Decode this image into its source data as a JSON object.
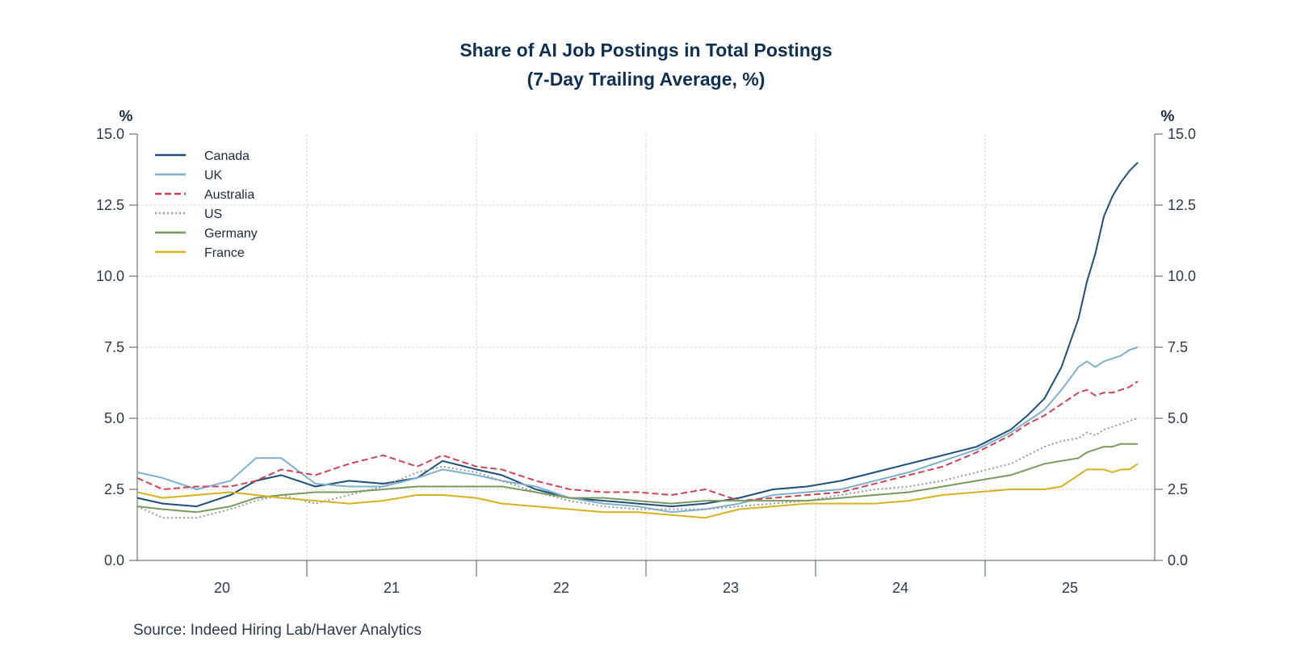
{
  "chart_data": {
    "type": "line",
    "title": "Share of AI Job Postings in Total Postings",
    "subtitle": "(7-Day Trailing Average, %)",
    "y_unit_left": "%",
    "y_unit_right": "%",
    "ylim": [
      0,
      15
    ],
    "yticks": [
      "0.0",
      "2.5",
      "5.0",
      "7.5",
      "10.0",
      "12.5",
      "15.0"
    ],
    "xlim": [
      2019.85,
      2025.85
    ],
    "x_categories": [
      "20",
      "21",
      "22",
      "23",
      "24",
      "25"
    ],
    "grid": true,
    "legend_position": "top-left",
    "series": [
      {
        "name": "Canada",
        "color": "#1f4e79",
        "dash": "solid",
        "x": [
          2019.85,
          2020.0,
          2020.2,
          2020.4,
          2020.55,
          2020.7,
          2020.9,
          2021.1,
          2021.3,
          2021.5,
          2021.65,
          2021.85,
          2022.0,
          2022.2,
          2022.4,
          2022.6,
          2022.8,
          2023.0,
          2023.2,
          2023.4,
          2023.6,
          2023.8,
          2024.0,
          2024.2,
          2024.4,
          2024.6,
          2024.8,
          2025.0,
          2025.1,
          2025.2,
          2025.3,
          2025.4,
          2025.45,
          2025.5,
          2025.55,
          2025.6,
          2025.65,
          2025.7,
          2025.75
        ],
        "y": [
          2.2,
          2.0,
          1.9,
          2.3,
          2.8,
          3.0,
          2.6,
          2.8,
          2.7,
          2.9,
          3.5,
          3.2,
          3.0,
          2.5,
          2.2,
          2.1,
          2.0,
          1.9,
          2.0,
          2.2,
          2.5,
          2.6,
          2.8,
          3.1,
          3.4,
          3.7,
          4.0,
          4.6,
          5.1,
          5.7,
          6.8,
          8.5,
          9.8,
          10.8,
          12.1,
          12.8,
          13.3,
          13.7,
          14.0
        ]
      },
      {
        "name": "UK",
        "color": "#7fb0cd",
        "dash": "solid",
        "x": [
          2019.85,
          2020.0,
          2020.2,
          2020.4,
          2020.55,
          2020.7,
          2020.9,
          2021.1,
          2021.3,
          2021.5,
          2021.65,
          2021.85,
          2022.0,
          2022.2,
          2022.4,
          2022.6,
          2022.8,
          2023.0,
          2023.2,
          2023.4,
          2023.6,
          2023.8,
          2024.0,
          2024.2,
          2024.4,
          2024.6,
          2024.8,
          2025.0,
          2025.1,
          2025.2,
          2025.3,
          2025.4,
          2025.45,
          2025.5,
          2025.55,
          2025.6,
          2025.65,
          2025.7,
          2025.75
        ],
        "y": [
          3.1,
          2.9,
          2.5,
          2.8,
          3.6,
          3.6,
          2.7,
          2.6,
          2.6,
          2.9,
          3.2,
          3.0,
          2.8,
          2.6,
          2.2,
          2.0,
          1.9,
          1.7,
          1.8,
          2.0,
          2.3,
          2.4,
          2.5,
          2.8,
          3.1,
          3.5,
          3.9,
          4.5,
          4.9,
          5.3,
          6.0,
          6.8,
          7.0,
          6.8,
          7.0,
          7.1,
          7.2,
          7.4,
          7.5
        ]
      },
      {
        "name": "Australia",
        "color": "#cc4455",
        "dash": "dashed",
        "x": [
          2019.85,
          2020.0,
          2020.2,
          2020.4,
          2020.55,
          2020.7,
          2020.9,
          2021.1,
          2021.3,
          2021.5,
          2021.65,
          2021.85,
          2022.0,
          2022.2,
          2022.4,
          2022.6,
          2022.8,
          2023.0,
          2023.2,
          2023.4,
          2023.6,
          2023.8,
          2024.0,
          2024.2,
          2024.4,
          2024.6,
          2024.8,
          2025.0,
          2025.1,
          2025.2,
          2025.3,
          2025.4,
          2025.45,
          2025.5,
          2025.55,
          2025.6,
          2025.65,
          2025.7,
          2025.75
        ],
        "y": [
          2.9,
          2.5,
          2.6,
          2.6,
          2.8,
          3.2,
          3.0,
          3.4,
          3.7,
          3.3,
          3.7,
          3.3,
          3.2,
          2.8,
          2.5,
          2.4,
          2.4,
          2.3,
          2.5,
          2.1,
          2.2,
          2.3,
          2.4,
          2.7,
          3.0,
          3.3,
          3.8,
          4.4,
          4.8,
          5.1,
          5.5,
          5.9,
          6.0,
          5.8,
          5.9,
          5.9,
          6.0,
          6.1,
          6.3
        ]
      },
      {
        "name": "US",
        "color": "#999999",
        "dash": "dotted",
        "x": [
          2019.85,
          2020.0,
          2020.2,
          2020.4,
          2020.55,
          2020.7,
          2020.9,
          2021.1,
          2021.3,
          2021.5,
          2021.65,
          2021.85,
          2022.0,
          2022.2,
          2022.4,
          2022.6,
          2022.8,
          2023.0,
          2023.2,
          2023.4,
          2023.6,
          2023.8,
          2024.0,
          2024.2,
          2024.4,
          2024.6,
          2024.8,
          2025.0,
          2025.1,
          2025.2,
          2025.3,
          2025.4,
          2025.45,
          2025.5,
          2025.55,
          2025.6,
          2025.65,
          2025.7,
          2025.75
        ],
        "y": [
          1.9,
          1.5,
          1.5,
          1.8,
          2.1,
          2.3,
          2.0,
          2.3,
          2.6,
          3.1,
          3.3,
          3.1,
          2.8,
          2.4,
          2.1,
          1.9,
          1.8,
          1.8,
          1.8,
          1.9,
          2.0,
          2.1,
          2.3,
          2.5,
          2.6,
          2.8,
          3.1,
          3.4,
          3.7,
          4.0,
          4.2,
          4.3,
          4.5,
          4.4,
          4.6,
          4.7,
          4.8,
          4.9,
          5.0
        ]
      },
      {
        "name": "Germany",
        "color": "#7a9a5c",
        "dash": "solid",
        "x": [
          2019.85,
          2020.0,
          2020.2,
          2020.4,
          2020.55,
          2020.7,
          2020.9,
          2021.1,
          2021.3,
          2021.5,
          2021.65,
          2021.85,
          2022.0,
          2022.2,
          2022.4,
          2022.6,
          2022.8,
          2023.0,
          2023.2,
          2023.4,
          2023.6,
          2023.8,
          2024.0,
          2024.2,
          2024.4,
          2024.6,
          2024.8,
          2025.0,
          2025.1,
          2025.2,
          2025.3,
          2025.4,
          2025.45,
          2025.5,
          2025.55,
          2025.6,
          2025.65,
          2025.7,
          2025.75
        ],
        "y": [
          1.9,
          1.8,
          1.7,
          1.9,
          2.2,
          2.3,
          2.4,
          2.4,
          2.5,
          2.6,
          2.6,
          2.6,
          2.6,
          2.4,
          2.2,
          2.2,
          2.1,
          2.0,
          2.1,
          2.1,
          2.1,
          2.1,
          2.2,
          2.3,
          2.4,
          2.6,
          2.8,
          3.0,
          3.2,
          3.4,
          3.5,
          3.6,
          3.8,
          3.9,
          4.0,
          4.0,
          4.1,
          4.1,
          4.1
        ]
      },
      {
        "name": "France",
        "color": "#d9b01f",
        "dash": "solid",
        "x": [
          2019.85,
          2020.0,
          2020.2,
          2020.4,
          2020.55,
          2020.7,
          2020.9,
          2021.1,
          2021.3,
          2021.5,
          2021.65,
          2021.85,
          2022.0,
          2022.2,
          2022.4,
          2022.6,
          2022.8,
          2023.0,
          2023.2,
          2023.4,
          2023.6,
          2023.8,
          2024.0,
          2024.2,
          2024.4,
          2024.6,
          2024.8,
          2025.0,
          2025.1,
          2025.2,
          2025.3,
          2025.4,
          2025.45,
          2025.5,
          2025.55,
          2025.6,
          2025.65,
          2025.7,
          2025.75
        ],
        "y": [
          2.4,
          2.2,
          2.3,
          2.4,
          2.3,
          2.2,
          2.1,
          2.0,
          2.1,
          2.3,
          2.3,
          2.2,
          2.0,
          1.9,
          1.8,
          1.7,
          1.7,
          1.6,
          1.5,
          1.8,
          1.9,
          2.0,
          2.0,
          2.0,
          2.1,
          2.3,
          2.4,
          2.5,
          2.5,
          2.5,
          2.6,
          3.0,
          3.2,
          3.2,
          3.2,
          3.1,
          3.2,
          3.2,
          3.4
        ]
      }
    ]
  },
  "source": "Source:  Indeed Hiring Lab/Haver Analytics"
}
